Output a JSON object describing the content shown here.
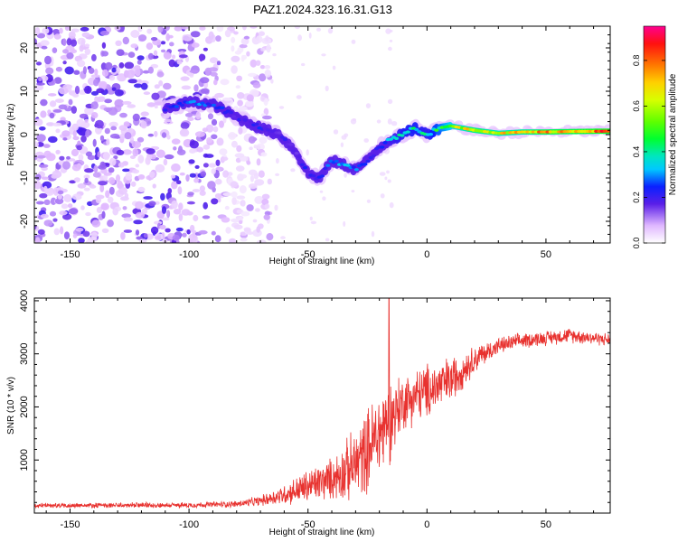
{
  "title": "PAZ1.2024.323.16.31.G13",
  "chart_data": [
    {
      "type": "heatmap",
      "name": "spectrogram",
      "xlabel": "Height of straight line (km)",
      "ylabel": "Frequency (Hz)",
      "xlim": [
        -165,
        77
      ],
      "ylim": [
        -25,
        25
      ],
      "xticks": [
        -150,
        -100,
        -50,
        0,
        50
      ],
      "yticks": [
        -20,
        -10,
        0,
        10,
        20
      ],
      "colorbar": {
        "label": "Normalized spectral amplitude",
        "range": [
          0,
          0.95
        ],
        "ticks": [
          0.0,
          0.2,
          0.4,
          0.6,
          0.8
        ],
        "tick_labels": [
          "0.0",
          "0.2",
          "0.4",
          "0.6",
          "0.8"
        ]
      },
      "noise_region_x": [
        -165,
        -72
      ],
      "ridge": {
        "x": [
          -110,
          -100,
          -90,
          -80,
          -70,
          -62,
          -55,
          -50,
          -45,
          -40,
          -35,
          -30,
          -25,
          -20,
          -15,
          -10,
          -5,
          0,
          5,
          10,
          20,
          30,
          40,
          50,
          60,
          77
        ],
        "freq": [
          6,
          7.5,
          7,
          4,
          1.5,
          0,
          -4,
          -9,
          -10,
          -6,
          -7,
          -8,
          -6,
          -3,
          -1,
          0,
          1.5,
          0,
          1.5,
          2,
          1,
          0.3,
          0.6,
          0.6,
          0.7,
          0.8
        ],
        "amplitude": [
          0.25,
          0.3,
          0.28,
          0.2,
          0.25,
          0.2,
          0.2,
          0.22,
          0.25,
          0.3,
          0.32,
          0.28,
          0.25,
          0.25,
          0.35,
          0.4,
          0.42,
          0.38,
          0.5,
          0.6,
          0.75,
          0.7,
          0.72,
          0.78,
          0.8,
          0.85
        ]
      }
    },
    {
      "type": "line",
      "name": "snr",
      "xlabel": "Height of straight line (km)",
      "ylabel": "SNR (10 * v/v)",
      "xlim": [
        -165,
        77
      ],
      "ylim": [
        0,
        4050
      ],
      "xticks": [
        -150,
        -100,
        -50,
        0,
        50
      ],
      "yticks": [
        1000,
        2000,
        3000,
        4000
      ],
      "color": "#e8322f",
      "envelope": {
        "x": [
          -165,
          -100,
          -80,
          -70,
          -60,
          -50,
          -40,
          -30,
          -25,
          -20,
          -15,
          -10,
          0,
          10,
          15,
          20,
          30,
          40,
          50,
          60,
          70,
          77
        ],
        "mean": [
          140,
          150,
          170,
          230,
          350,
          500,
          650,
          900,
          1200,
          1500,
          1800,
          2100,
          2300,
          2500,
          2700,
          2900,
          3150,
          3250,
          3300,
          3350,
          3300,
          3260
        ],
        "spread": [
          55,
          60,
          70,
          110,
          220,
          380,
          450,
          800,
          900,
          1000,
          900,
          600,
          600,
          520,
          400,
          300,
          180,
          170,
          160,
          160,
          150,
          140
        ]
      },
      "spike": {
        "x": -16,
        "value": 4050
      }
    }
  ]
}
